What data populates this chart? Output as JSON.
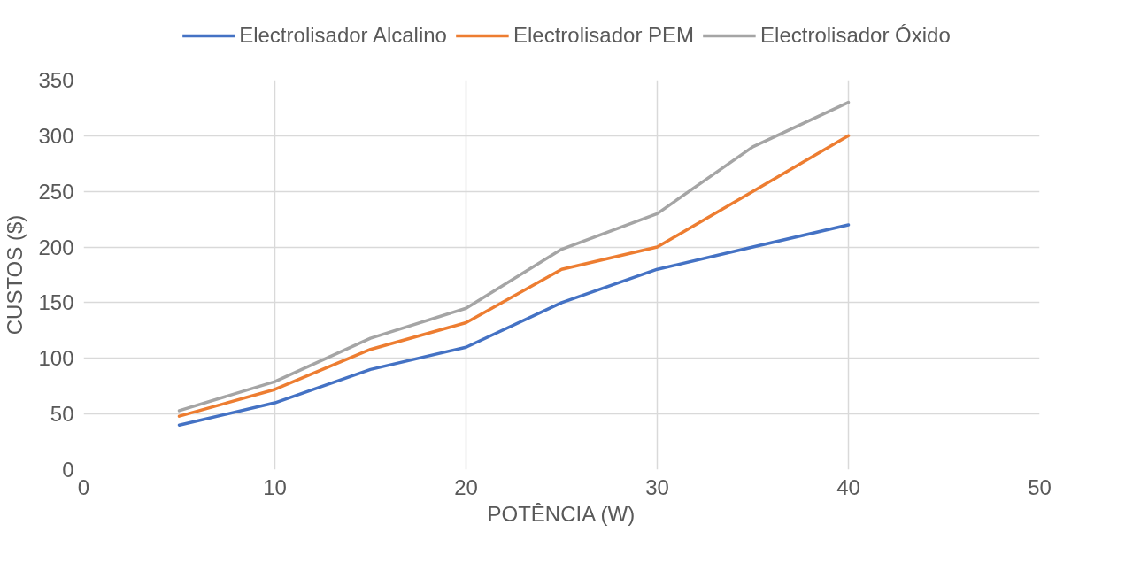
{
  "chart_data": {
    "type": "line",
    "xlabel": "POTÊNCIA (W)",
    "ylabel": "CUSTOS ($)",
    "x": [
      5,
      10,
      15,
      20,
      25,
      30,
      35,
      40
    ],
    "series": [
      {
        "name": "Electrolisador Alcalino",
        "color": "#4472c4",
        "values": [
          40,
          60,
          90,
          110,
          150,
          180,
          200,
          220
        ]
      },
      {
        "name": "Electrolisador PEM",
        "color": "#ed7d31",
        "values": [
          48,
          72,
          108,
          132,
          180,
          200,
          250,
          300
        ]
      },
      {
        "name": "Electrolisador Óxido",
        "color": "#a5a5a5",
        "values": [
          53,
          79,
          118,
          145,
          198,
          230,
          290,
          330
        ]
      }
    ],
    "xlim": [
      0,
      50
    ],
    "xticks": [
      0,
      10,
      20,
      30,
      40,
      50
    ],
    "ylim": [
      0,
      350
    ],
    "yticks": [
      0,
      50,
      100,
      150,
      200,
      250,
      300,
      350
    ],
    "grid": true,
    "legend": "top",
    "marker": "none",
    "line_style": "solid"
  }
}
